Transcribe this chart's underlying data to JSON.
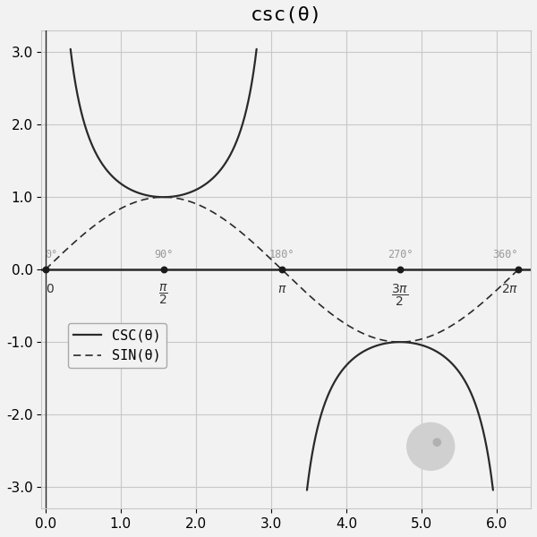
{
  "title": "csc(θ)",
  "xlim": [
    -0.05,
    6.45
  ],
  "ylim": [
    -3.3,
    3.3
  ],
  "yticks": [
    -3.0,
    -2.0,
    -1.0,
    0.0,
    1.0,
    2.0,
    3.0
  ],
  "xticks_bottom": [
    0.0,
    1.0,
    2.0,
    3.0,
    4.0,
    5.0,
    6.0
  ],
  "clip_val": 3.05,
  "line_color": "#2a2a2a",
  "dot_color": "#1a1a1a",
  "grid_color": "#c8c8c8",
  "background_color": "#f2f2f2",
  "title_fontsize": 16,
  "tick_fontsize": 11,
  "deg_label_color": "#999999",
  "rad_label_color": "#333333"
}
